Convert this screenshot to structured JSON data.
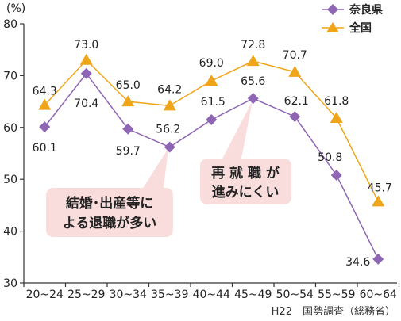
{
  "chart_data": {
    "type": "line",
    "categories": [
      "20~24",
      "25~29",
      "30~34",
      "35~39",
      "40~44",
      "45~49",
      "50~54",
      "55~59",
      "60~64"
    ],
    "series": [
      {
        "name": "奈良県",
        "values": [
          60.1,
          70.4,
          59.7,
          56.2,
          61.5,
          65.6,
          62.1,
          50.8,
          34.6
        ],
        "color": "#8e66b4",
        "marker": "diamond"
      },
      {
        "name": "全国",
        "values": [
          64.3,
          73.0,
          65.0,
          64.2,
          69.0,
          72.8,
          70.7,
          61.8,
          45.7
        ],
        "color": "#f0a418",
        "marker": "triangle"
      }
    ],
    "unit_label": "(%)",
    "ylim": [
      30,
      80
    ],
    "yticks": [
      30,
      40,
      50,
      60,
      70,
      80
    ],
    "grid": false,
    "legend_position": "top-right",
    "source": "H22　国勢調査（総務省）",
    "annotations": [
      {
        "lines": [
          "再 就 職 が",
          "進みにくい"
        ],
        "target_category": "45~49"
      },
      {
        "lines": [
          "結婚･出産等に",
          "よる退職が多い"
        ],
        "target_category": "35~39"
      }
    ]
  }
}
